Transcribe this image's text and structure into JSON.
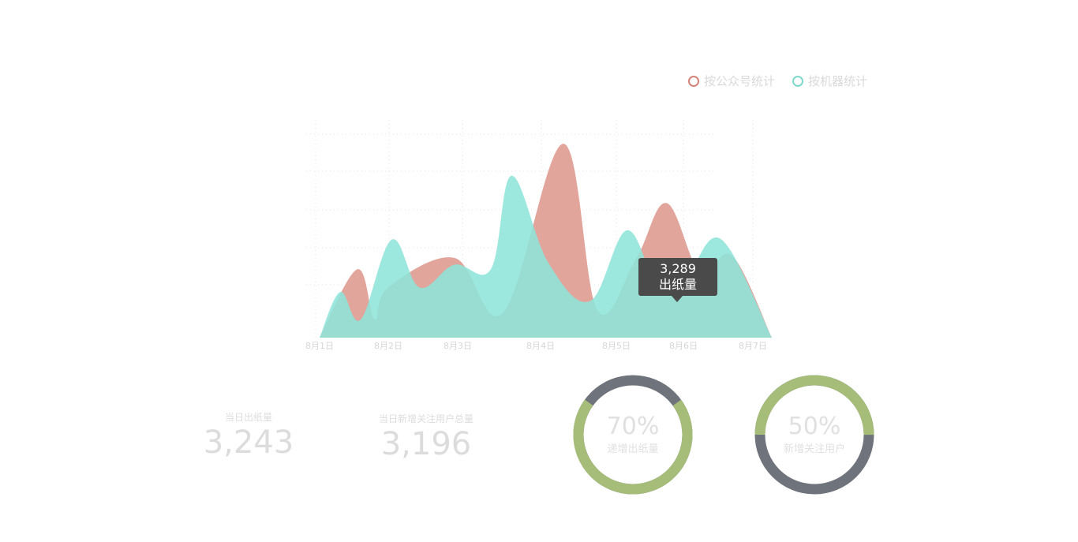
{
  "legend": {
    "items": [
      {
        "label": "按公众号统计",
        "color": "#d4837a"
      },
      {
        "label": "按机器统计",
        "color": "#7fd8cc"
      }
    ]
  },
  "tooltip": {
    "value": "3,289",
    "label": "出纸量"
  },
  "stats": [
    {
      "label": "当日出纸量",
      "value": "3,243"
    },
    {
      "label": "当日新增关注用户总量",
      "value": "3,196"
    }
  ],
  "donuts": [
    {
      "percent": 70,
      "percent_text": "70%",
      "label": "递增出纸量",
      "fill_color": "#a6bd7a",
      "rest_color": "#6f737b"
    },
    {
      "percent": 50,
      "percent_text": "50%",
      "label": "新增关注用户",
      "fill_color": "#a6bd7a",
      "rest_color": "#6f737b"
    }
  ],
  "chart_data": {
    "type": "area",
    "categories": [
      "8月1日",
      "8月2日",
      "8月3日",
      "8月4日",
      "8月5日",
      "8月6日",
      "8月7日"
    ],
    "series": [
      {
        "name": "按公众号统计",
        "color": "#e0a097",
        "x": [
          0,
          0.55,
          0.8,
          1.0,
          1.95,
          2.55,
          3.3,
          3.75,
          4.3,
          4.75,
          5.25,
          5.7,
          6.2
        ],
        "values": [
          0,
          30,
          8,
          22,
          35,
          11,
          85,
          12,
          35,
          59,
          28,
          36,
          0
        ]
      },
      {
        "name": "按机器统计",
        "color": "#8ee4da",
        "x": [
          0,
          0.3,
          0.6,
          1.05,
          1.45,
          1.95,
          2.4,
          2.65,
          3.1,
          3.65,
          4.15,
          4.6,
          5.05,
          5.55,
          6.2
        ],
        "values": [
          0,
          20,
          8,
          43,
          22,
          32,
          30,
          71,
          33,
          16,
          47,
          25,
          28,
          43,
          0
        ]
      }
    ],
    "ylim": [
      0,
      110
    ],
    "grid": true
  }
}
